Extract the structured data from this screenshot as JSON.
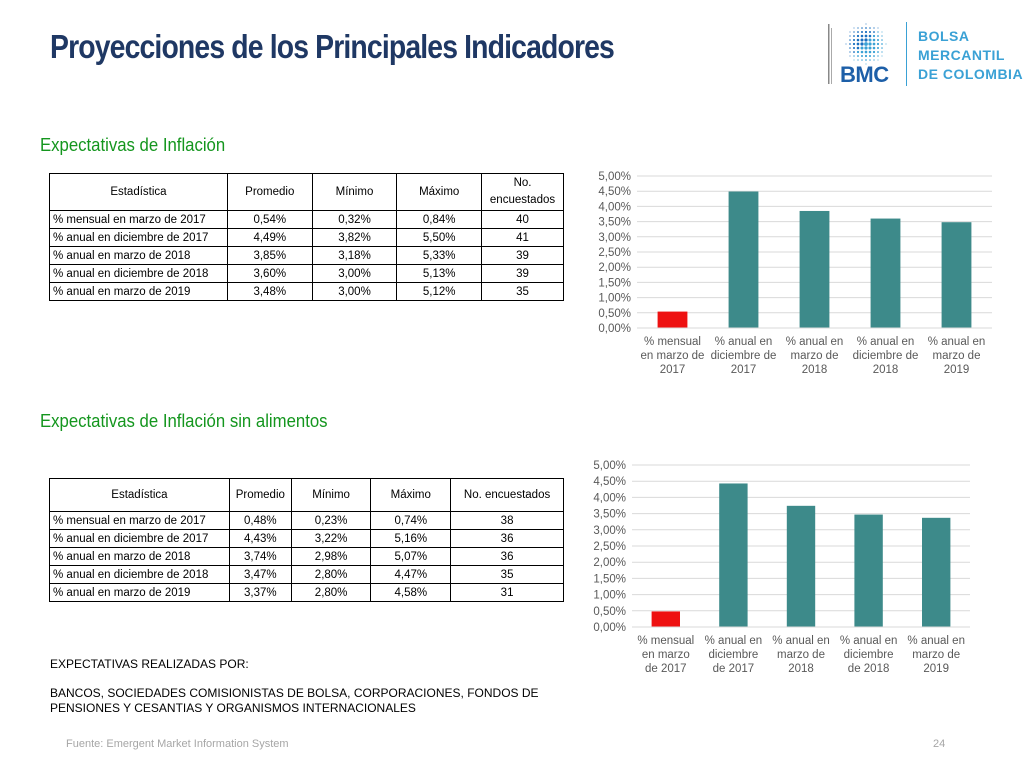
{
  "header": {
    "title": "Proyecciones de los Principales Indicadores",
    "logo": {
      "icon": "bmc-globe-logo",
      "acronym": "BMC",
      "line1": "BOLSA",
      "line2": "MERCANTIL",
      "line3": "DE COLOMBIA"
    }
  },
  "colors": {
    "title": "#1f3864",
    "section": "#14961e",
    "bar": "#3d8a8a",
    "bar_highlight": "#ee1111",
    "logo_blue": "#3aa1d5"
  },
  "section1": {
    "title": "Expectativas de Inflación",
    "headers": [
      "Estadística",
      "Promedio",
      "Mínimo",
      "Máximo",
      "No. encuestados"
    ],
    "rows": [
      [
        "% mensual en marzo de 2017",
        "0,54%",
        "0,32%",
        "0,84%",
        "40"
      ],
      [
        "% anual en diciembre de 2017",
        "4,49%",
        "3,82%",
        "5,50%",
        "41"
      ],
      [
        "% anual en marzo de 2018",
        "3,85%",
        "3,18%",
        "5,33%",
        "39"
      ],
      [
        "% anual en diciembre de 2018",
        "3,60%",
        "3,00%",
        "5,13%",
        "39"
      ],
      [
        "% anual en marzo de 2019",
        "3,48%",
        "3,00%",
        "5,12%",
        "35"
      ]
    ]
  },
  "section2": {
    "title": "Expectativas de Inflación sin alimentos",
    "headers": [
      "Estadística",
      "Promedio",
      "Mínimo",
      "Máximo",
      "No. encuestados"
    ],
    "rows": [
      [
        "% mensual en marzo de 2017",
        "0,48%",
        "0,23%",
        "0,74%",
        "38"
      ],
      [
        "% anual en diciembre de 2017",
        "4,43%",
        "3,22%",
        "5,16%",
        "36"
      ],
      [
        "% anual en marzo de 2018",
        "3,74%",
        "2,98%",
        "5,07%",
        "36"
      ],
      [
        "% anual en diciembre de 2018",
        "3,47%",
        "2,80%",
        "4,47%",
        "35"
      ],
      [
        "% anual en marzo de 2019",
        "3,37%",
        "2,80%",
        "4,58%",
        "31"
      ]
    ]
  },
  "notes": {
    "heading": "EXPECTATIVAS REALIZADAS POR:",
    "body": "BANCOS, SOCIEDADES COMISIONISTAS DE BOLSA, CORPORACIONES, FONDOS DE PENSIONES Y CESANTIAS Y ORGANISMOS INTERNACIONALES"
  },
  "footer": {
    "source": "Fuente: Emergent Market Information System",
    "page": "24"
  },
  "chart_data": [
    {
      "type": "bar",
      "categories": [
        [
          "% mensual",
          "en marzo de",
          "2017"
        ],
        [
          "% anual en",
          "diciembre de",
          "2017"
        ],
        [
          "% anual en",
          "marzo de",
          "2018"
        ],
        [
          "% anual en",
          "diciembre de",
          "2018"
        ],
        [
          "% anual en",
          "marzo de",
          "2019"
        ]
      ],
      "values": [
        0.54,
        4.49,
        3.85,
        3.6,
        3.48
      ],
      "highlight_index": 0,
      "ylim": [
        0,
        5
      ],
      "ytick_step": 0.5,
      "yticks": [
        "0,00%",
        "0,50%",
        "1,00%",
        "1,50%",
        "2,00%",
        "2,50%",
        "3,00%",
        "3,50%",
        "4,00%",
        "4,50%",
        "5,00%"
      ],
      "grid": true,
      "legend": "none",
      "title": "",
      "xlabel": "",
      "ylabel": ""
    },
    {
      "type": "bar",
      "categories": [
        [
          "% mensual",
          "en marzo",
          "de 2017"
        ],
        [
          "% anual en",
          "diciembre",
          "de 2017"
        ],
        [
          "% anual en",
          "marzo de",
          "2018"
        ],
        [
          "% anual en",
          "diciembre",
          "de 2018"
        ],
        [
          "% anual en",
          "marzo de",
          "2019"
        ]
      ],
      "values": [
        0.48,
        4.43,
        3.74,
        3.47,
        3.37
      ],
      "highlight_index": 0,
      "ylim": [
        0,
        5
      ],
      "ytick_step": 0.5,
      "yticks": [
        "0,00%",
        "0,50%",
        "1,00%",
        "1,50%",
        "2,00%",
        "2,50%",
        "3,00%",
        "3,50%",
        "4,00%",
        "4,50%",
        "5,00%"
      ],
      "grid": true,
      "legend": "none",
      "title": "",
      "xlabel": "",
      "ylabel": ""
    }
  ]
}
